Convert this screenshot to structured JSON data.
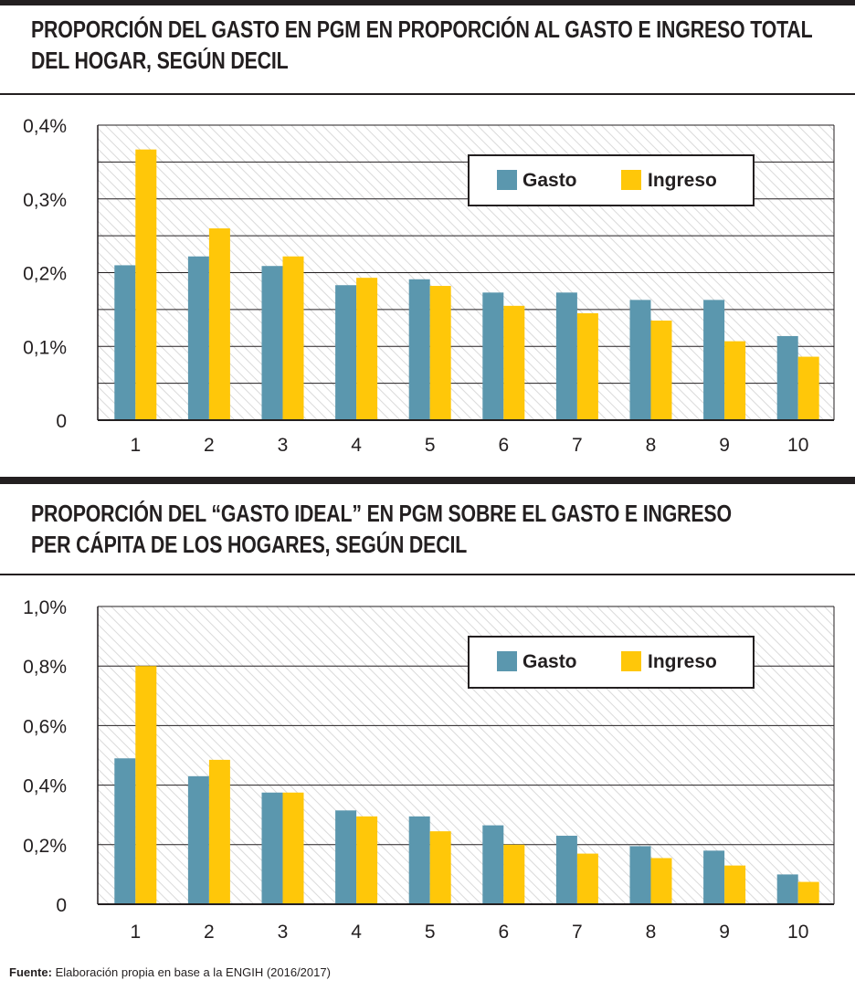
{
  "footer": {
    "label": "Fuente:",
    "text": "Elaboración propia en base a la ENGIH (2016/2017)"
  },
  "colors": {
    "gasto": "#5b97ae",
    "ingreso": "#ffc709",
    "text": "#231f20"
  },
  "chart_data": [
    {
      "type": "bar",
      "title": "PROPORCIÓN DEL GASTO EN PGM EN PROPORCIÓN AL GASTO E INGRESO TOTAL DEL HOGAR, SEGÚN DECIL",
      "title_lines": [
        "PROPORCIÓN DEL GASTO EN PGM EN PROPORCIÓN AL GASTO E INGRESO TOTAL",
        "DEL HOGAR, SEGÚN DECIL"
      ],
      "categories": [
        "1",
        "2",
        "3",
        "4",
        "5",
        "6",
        "7",
        "8",
        "9",
        "10"
      ],
      "series": [
        {
          "name": "Gasto",
          "values": [
            0.21,
            0.222,
            0.209,
            0.183,
            0.191,
            0.173,
            0.173,
            0.163,
            0.163,
            0.114
          ]
        },
        {
          "name": "Ingreso",
          "values": [
            0.367,
            0.26,
            0.222,
            0.193,
            0.182,
            0.155,
            0.145,
            0.135,
            0.107,
            0.086
          ]
        }
      ],
      "ylim": [
        0,
        0.4
      ],
      "yticks": [
        0,
        0.1,
        0.2,
        0.3,
        0.4
      ],
      "ytick_labels": [
        "0",
        "0,1%",
        "0,2%",
        "0,3%",
        "0,4%"
      ],
      "minor_gridlines": [
        0.05,
        0.15,
        0.25,
        0.35
      ],
      "legend": [
        "Gasto",
        "Ingreso"
      ],
      "legend_position": "top-right",
      "grid": true
    },
    {
      "type": "bar",
      "title": "PROPORCIÓN DEL “GASTO IDEAL” EN PGM SOBRE EL GASTO E INGRESO PER CÁPITA DE LOS HOGARES, SEGÚN DECIL",
      "title_lines": [
        "PROPORCIÓN DEL “GASTO IDEAL” EN PGM SOBRE EL GASTO E INGRESO",
        "PER CÁPITA DE LOS HOGARES, SEGÚN DECIL"
      ],
      "categories": [
        "1",
        "2",
        "3",
        "4",
        "5",
        "6",
        "7",
        "8",
        "9",
        "10"
      ],
      "series": [
        {
          "name": "Gasto",
          "values": [
            0.49,
            0.43,
            0.375,
            0.315,
            0.295,
            0.265,
            0.23,
            0.195,
            0.18,
            0.1
          ]
        },
        {
          "name": "Ingreso",
          "values": [
            0.8,
            0.485,
            0.375,
            0.295,
            0.245,
            0.2,
            0.17,
            0.155,
            0.13,
            0.075
          ]
        }
      ],
      "ylim": [
        0,
        1.0
      ],
      "yticks": [
        0,
        0.2,
        0.4,
        0.6,
        0.8,
        1.0
      ],
      "ytick_labels": [
        "0",
        "0,2%",
        "0,4%",
        "0,6%",
        "0,8%",
        "1,0%"
      ],
      "minor_gridlines": [],
      "legend": [
        "Gasto",
        "Ingreso"
      ],
      "legend_position": "top-right",
      "grid": true
    }
  ]
}
